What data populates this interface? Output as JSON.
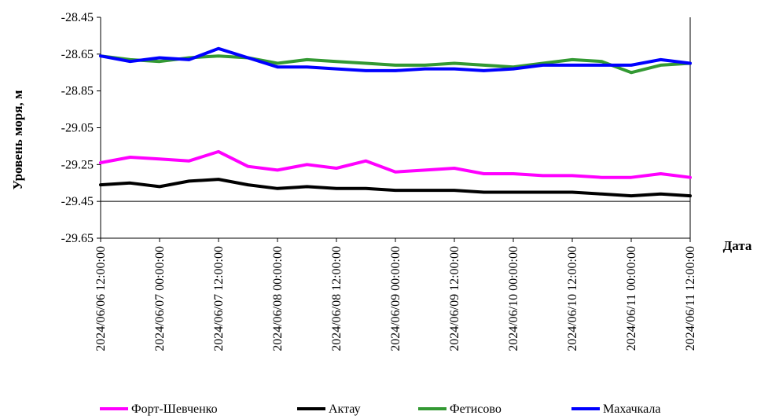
{
  "chart_data": {
    "type": "line",
    "xlabel": "Дата",
    "ylabel": "Уровень моря, м",
    "ylim": [
      -29.65,
      -28.45
    ],
    "yticks": [
      "-28.45",
      "-28.65",
      "-28.85",
      "-29.05",
      "-29.25",
      "-29.45",
      "-29.65"
    ],
    "xlim": [
      "2024/06/06 12:00:00",
      "2024/06/11 12:00:00"
    ],
    "xticks": [
      "2024/06/06 12:00:00",
      "2024/06/07 00:00:00",
      "2024/06/07 12:00:00",
      "2024/06/08 00:00:00",
      "2024/06/08 12:00:00",
      "2024/06/09 00:00:00",
      "2024/06/09 12:00:00",
      "2024/06/10 00:00:00",
      "2024/06/10 12:00:00",
      "2024/06/11 00:00:00",
      "2024/06/11 12:00:00"
    ],
    "grid": false,
    "legend": "bottom",
    "x": [
      "2024/06/06 12:00:00",
      "2024/06/06 18:00:00",
      "2024/06/07 00:00:00",
      "2024/06/07 06:00:00",
      "2024/06/07 12:00:00",
      "2024/06/07 18:00:00",
      "2024/06/08 00:00:00",
      "2024/06/08 06:00:00",
      "2024/06/08 12:00:00",
      "2024/06/08 18:00:00",
      "2024/06/09 00:00:00",
      "2024/06/09 06:00:00",
      "2024/06/09 12:00:00",
      "2024/06/09 18:00:00",
      "2024/06/10 00:00:00",
      "2024/06/10 06:00:00",
      "2024/06/10 12:00:00",
      "2024/06/10 18:00:00",
      "2024/06/11 00:00:00",
      "2024/06/11 06:00:00",
      "2024/06/11 12:00:00"
    ],
    "series": [
      {
        "name": "Форт-Шевченко",
        "color": "#ff00ff",
        "values": [
          -29.24,
          -29.21,
          -29.22,
          -29.23,
          -29.18,
          -29.26,
          -29.28,
          -29.25,
          -29.27,
          -29.23,
          -29.29,
          -29.28,
          -29.27,
          -29.3,
          -29.3,
          -29.31,
          -29.31,
          -29.32,
          -29.32,
          -29.3,
          -29.32
        ]
      },
      {
        "name": "Актау",
        "color": "#000000",
        "values": [
          -29.36,
          -29.35,
          -29.37,
          -29.34,
          -29.33,
          -29.36,
          -29.38,
          -29.37,
          -29.38,
          -29.38,
          -29.39,
          -29.39,
          -29.39,
          -29.4,
          -29.4,
          -29.4,
          -29.4,
          -29.41,
          -29.42,
          -29.41,
          -29.42
        ]
      },
      {
        "name": "Фетисово",
        "color": "#339933",
        "values": [
          -28.66,
          -28.68,
          -28.69,
          -28.67,
          -28.66,
          -28.67,
          -28.7,
          -28.68,
          -28.69,
          -28.7,
          -28.71,
          -28.71,
          -28.7,
          -28.71,
          -28.72,
          -28.7,
          -28.68,
          -28.69,
          -28.75,
          -28.71,
          -28.7
        ]
      },
      {
        "name": "Махачкала",
        "color": "#0000ff",
        "values": [
          -28.66,
          -28.69,
          -28.67,
          -28.68,
          -28.62,
          -28.67,
          -28.72,
          -28.72,
          -28.73,
          -28.74,
          -28.74,
          -28.73,
          -28.73,
          -28.74,
          -28.73,
          -28.71,
          -28.71,
          -28.71,
          -28.71,
          -28.68,
          -28.7
        ]
      }
    ]
  }
}
